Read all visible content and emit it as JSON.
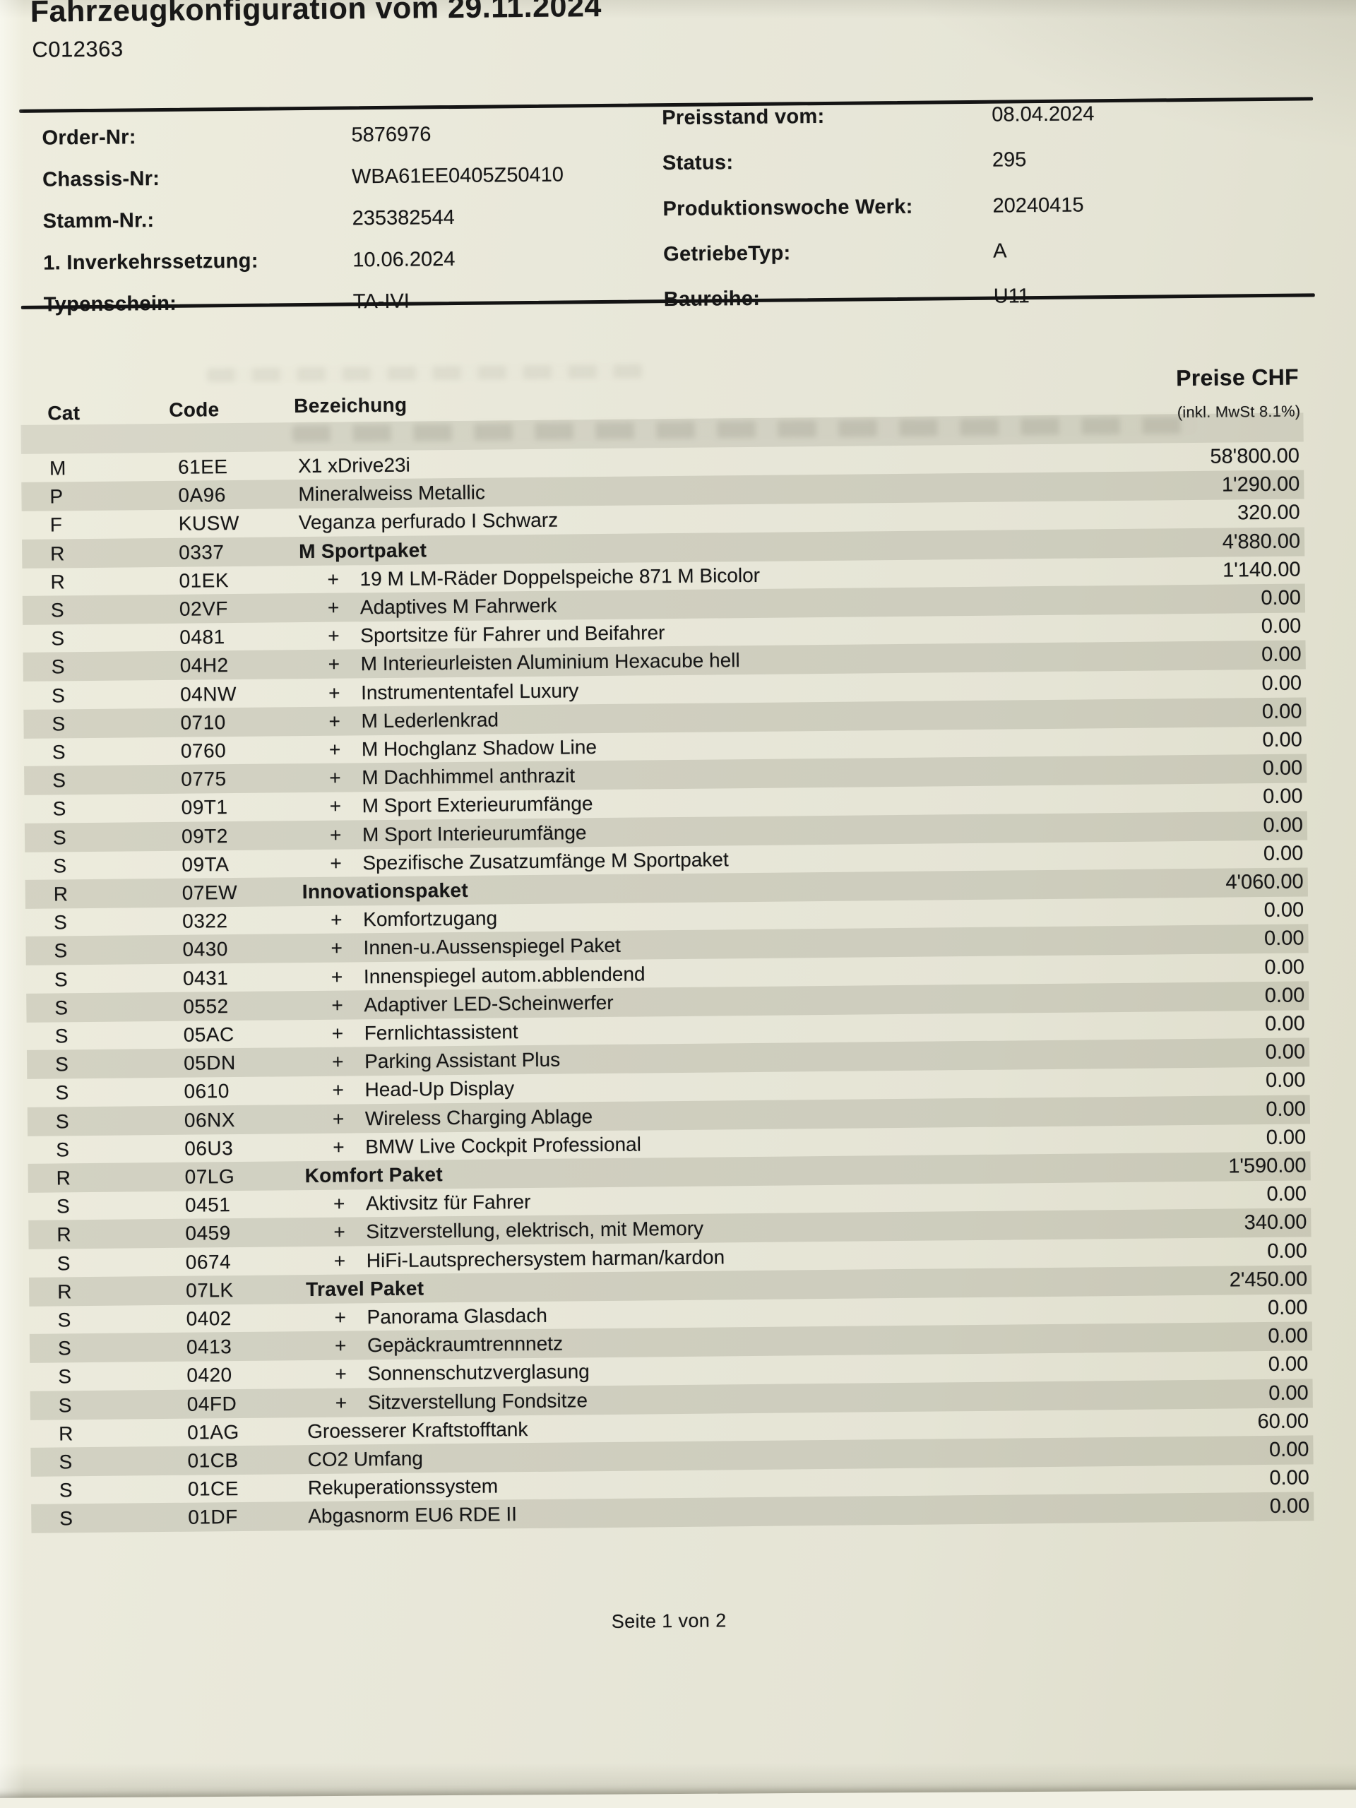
{
  "document": {
    "title": "Fahrzeugkonfiguration vom 29.11.2024",
    "doc_number": "C012363",
    "info": {
      "left": [
        {
          "label": "Order-Nr:",
          "value": "5876976"
        },
        {
          "label": "Chassis-Nr:",
          "value": "WBA61EE0405Z50410"
        },
        {
          "label": "Stamm-Nr.:",
          "value": "235382544"
        },
        {
          "label": "1. Inverkehrssetzung:",
          "value": "10.06.2024"
        },
        {
          "label": "Typenschein:",
          "value": "TA-IVI"
        }
      ],
      "right": [
        {
          "label": "Preisstand vom:",
          "value": "08.04.2024"
        },
        {
          "label": "Status:",
          "value": "295"
        },
        {
          "label": "Produktionswoche Werk:",
          "value": "20240415"
        },
        {
          "label": "GetriebeTyp:",
          "value": "A"
        },
        {
          "label": "Baureihe:",
          "value": "U11"
        }
      ]
    },
    "table": {
      "headers": {
        "cat": "Cat",
        "code": "Code",
        "description": "Bezeichung",
        "price": "Preise CHF",
        "price_note": "(inkl. MwSt 8.1%)"
      },
      "plus_sign": "+",
      "rows": [
        {
          "cat": "M",
          "code": "61EE",
          "desc": "X1 xDrive23i",
          "price": "58'800.00",
          "sub": false,
          "bold": false
        },
        {
          "cat": "P",
          "code": "0A96",
          "desc": "Mineralweiss Metallic",
          "price": "1'290.00",
          "sub": false,
          "bold": false
        },
        {
          "cat": "F",
          "code": "KUSW",
          "desc": "Veganza perfurado I Schwarz",
          "price": "320.00",
          "sub": false,
          "bold": false
        },
        {
          "cat": "R",
          "code": "0337",
          "desc": "M Sportpaket",
          "price": "4'880.00",
          "sub": false,
          "bold": true
        },
        {
          "cat": "R",
          "code": "01EK",
          "desc": "19 M LM-Räder Doppelspeiche 871 M Bicolor",
          "price": "1'140.00",
          "sub": true,
          "bold": false
        },
        {
          "cat": "S",
          "code": "02VF",
          "desc": "Adaptives M Fahrwerk",
          "price": "0.00",
          "sub": true,
          "bold": false
        },
        {
          "cat": "S",
          "code": "0481",
          "desc": "Sportsitze für Fahrer und Beifahrer",
          "price": "0.00",
          "sub": true,
          "bold": false
        },
        {
          "cat": "S",
          "code": "04H2",
          "desc": "M Interieurleisten Aluminium Hexacube hell",
          "price": "0.00",
          "sub": true,
          "bold": false
        },
        {
          "cat": "S",
          "code": "04NW",
          "desc": "Instrumententafel Luxury",
          "price": "0.00",
          "sub": true,
          "bold": false
        },
        {
          "cat": "S",
          "code": "0710",
          "desc": "M Lederlenkrad",
          "price": "0.00",
          "sub": true,
          "bold": false
        },
        {
          "cat": "S",
          "code": "0760",
          "desc": "M Hochglanz Shadow Line",
          "price": "0.00",
          "sub": true,
          "bold": false
        },
        {
          "cat": "S",
          "code": "0775",
          "desc": "M Dachhimmel anthrazit",
          "price": "0.00",
          "sub": true,
          "bold": false
        },
        {
          "cat": "S",
          "code": "09T1",
          "desc": "M Sport Exterieurumfänge",
          "price": "0.00",
          "sub": true,
          "bold": false
        },
        {
          "cat": "S",
          "code": "09T2",
          "desc": "M Sport Interieurumfänge",
          "price": "0.00",
          "sub": true,
          "bold": false
        },
        {
          "cat": "S",
          "code": "09TA",
          "desc": "Spezifische Zusatzumfänge M Sportpaket",
          "price": "0.00",
          "sub": true,
          "bold": false
        },
        {
          "cat": "R",
          "code": "07EW",
          "desc": "Innovationspaket",
          "price": "4'060.00",
          "sub": false,
          "bold": true
        },
        {
          "cat": "S",
          "code": "0322",
          "desc": "Komfortzugang",
          "price": "0.00",
          "sub": true,
          "bold": false
        },
        {
          "cat": "S",
          "code": "0430",
          "desc": "Innen-u.Aussenspiegel Paket",
          "price": "0.00",
          "sub": true,
          "bold": false
        },
        {
          "cat": "S",
          "code": "0431",
          "desc": "Innenspiegel autom.abblendend",
          "price": "0.00",
          "sub": true,
          "bold": false
        },
        {
          "cat": "S",
          "code": "0552",
          "desc": "Adaptiver LED-Scheinwerfer",
          "price": "0.00",
          "sub": true,
          "bold": false
        },
        {
          "cat": "S",
          "code": "05AC",
          "desc": "Fernlichtassistent",
          "price": "0.00",
          "sub": true,
          "bold": false
        },
        {
          "cat": "S",
          "code": "05DN",
          "desc": "Parking Assistant Plus",
          "price": "0.00",
          "sub": true,
          "bold": false
        },
        {
          "cat": "S",
          "code": "0610",
          "desc": "Head-Up Display",
          "price": "0.00",
          "sub": true,
          "bold": false
        },
        {
          "cat": "S",
          "code": "06NX",
          "desc": "Wireless Charging Ablage",
          "price": "0.00",
          "sub": true,
          "bold": false
        },
        {
          "cat": "S",
          "code": "06U3",
          "desc": "BMW Live Cockpit Professional",
          "price": "0.00",
          "sub": true,
          "bold": false
        },
        {
          "cat": "R",
          "code": "07LG",
          "desc": "Komfort Paket",
          "price": "1'590.00",
          "sub": false,
          "bold": true
        },
        {
          "cat": "S",
          "code": "0451",
          "desc": "Aktivsitz für Fahrer",
          "price": "0.00",
          "sub": true,
          "bold": false
        },
        {
          "cat": "R",
          "code": "0459",
          "desc": "Sitzverstellung, elektrisch, mit Memory",
          "price": "340.00",
          "sub": true,
          "bold": false
        },
        {
          "cat": "S",
          "code": "0674",
          "desc": "HiFi-Lautsprechersystem harman/kardon",
          "price": "0.00",
          "sub": true,
          "bold": false
        },
        {
          "cat": "R",
          "code": "07LK",
          "desc": "Travel Paket",
          "price": "2'450.00",
          "sub": false,
          "bold": true
        },
        {
          "cat": "S",
          "code": "0402",
          "desc": "Panorama Glasdach",
          "price": "0.00",
          "sub": true,
          "bold": false
        },
        {
          "cat": "S",
          "code": "0413",
          "desc": "Gepäckraumtrennnetz",
          "price": "0.00",
          "sub": true,
          "bold": false
        },
        {
          "cat": "S",
          "code": "0420",
          "desc": "Sonnenschutzverglasung",
          "price": "0.00",
          "sub": true,
          "bold": false
        },
        {
          "cat": "S",
          "code": "04FD",
          "desc": "Sitzverstellung Fondsitze",
          "price": "0.00",
          "sub": true,
          "bold": false
        },
        {
          "cat": "R",
          "code": "01AG",
          "desc": "Groesserer Kraftstofftank",
          "price": "60.00",
          "sub": false,
          "bold": false
        },
        {
          "cat": "S",
          "code": "01CB",
          "desc": "CO2 Umfang",
          "price": "0.00",
          "sub": false,
          "bold": false
        },
        {
          "cat": "S",
          "code": "01CE",
          "desc": "Rekuperationssystem",
          "price": "0.00",
          "sub": false,
          "bold": false
        },
        {
          "cat": "S",
          "code": "01DF",
          "desc": "Abgasnorm EU6 RDE II",
          "price": "0.00",
          "sub": false,
          "bold": false
        }
      ]
    },
    "footer": "Seite 1 von 2"
  },
  "colors": {
    "paper": "#e9e8da",
    "stripe": "#d4d3c5",
    "ink": "#171717"
  }
}
